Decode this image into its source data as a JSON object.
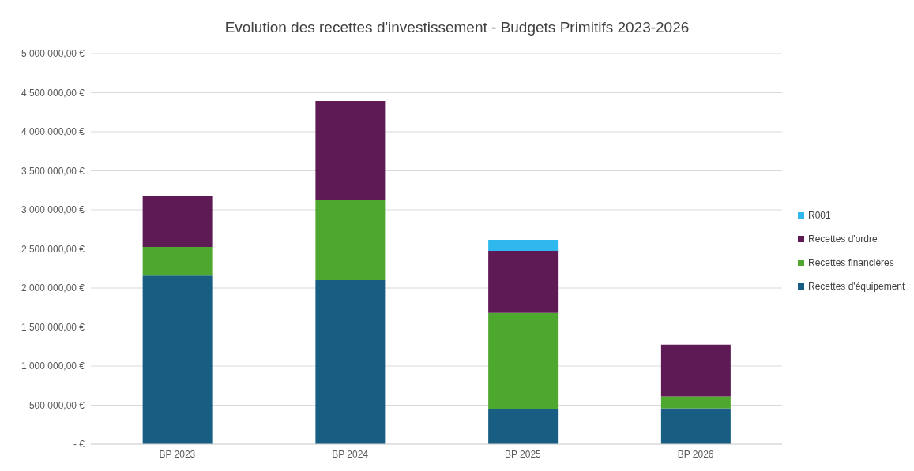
{
  "chart_data": {
    "type": "bar",
    "title": "Evolution des recettes d'investissement - Budgets Primitifs 2023-2026",
    "categories": [
      "BP 2023",
      "BP 2024",
      "BP 2025",
      "BP 2026"
    ],
    "stacked": true,
    "series": [
      {
        "name": "Recettes d'équipement",
        "color": "#175e82",
        "values": [
          2160000,
          2100000,
          450000,
          460000
        ]
      },
      {
        "name": "Recettes financières",
        "color": "#4ea72e",
        "values": [
          365000,
          1020000,
          1230000,
          150000
        ]
      },
      {
        "name": "Recettes d'ordre",
        "color": "#5e1a54",
        "values": [
          655000,
          1274000,
          795000,
          666000
        ]
      },
      {
        "name": "R001",
        "color": "#2fb8ee",
        "values": [
          0,
          0,
          140000,
          0
        ]
      }
    ],
    "ylim": [
      0,
      5000000
    ],
    "yticks": [
      {
        "value": 0,
        "label": "-   €"
      },
      {
        "value": 500000,
        "label": "500 000,00 €"
      },
      {
        "value": 1000000,
        "label": "1 000 000,00 €"
      },
      {
        "value": 1500000,
        "label": "1 500 000,00 €"
      },
      {
        "value": 2000000,
        "label": "2 000 000,00 €"
      },
      {
        "value": 2500000,
        "label": "2 500 000,00 €"
      },
      {
        "value": 3000000,
        "label": "3 000 000,00 €"
      },
      {
        "value": 3500000,
        "label": "3 500 000,00 €"
      },
      {
        "value": 4000000,
        "label": "4 000 000,00 €"
      },
      {
        "value": 4500000,
        "label": "4 500 000,00 €"
      },
      {
        "value": 5000000,
        "label": "5 000 000,00 €"
      }
    ],
    "grid": "y",
    "legend": "right"
  }
}
